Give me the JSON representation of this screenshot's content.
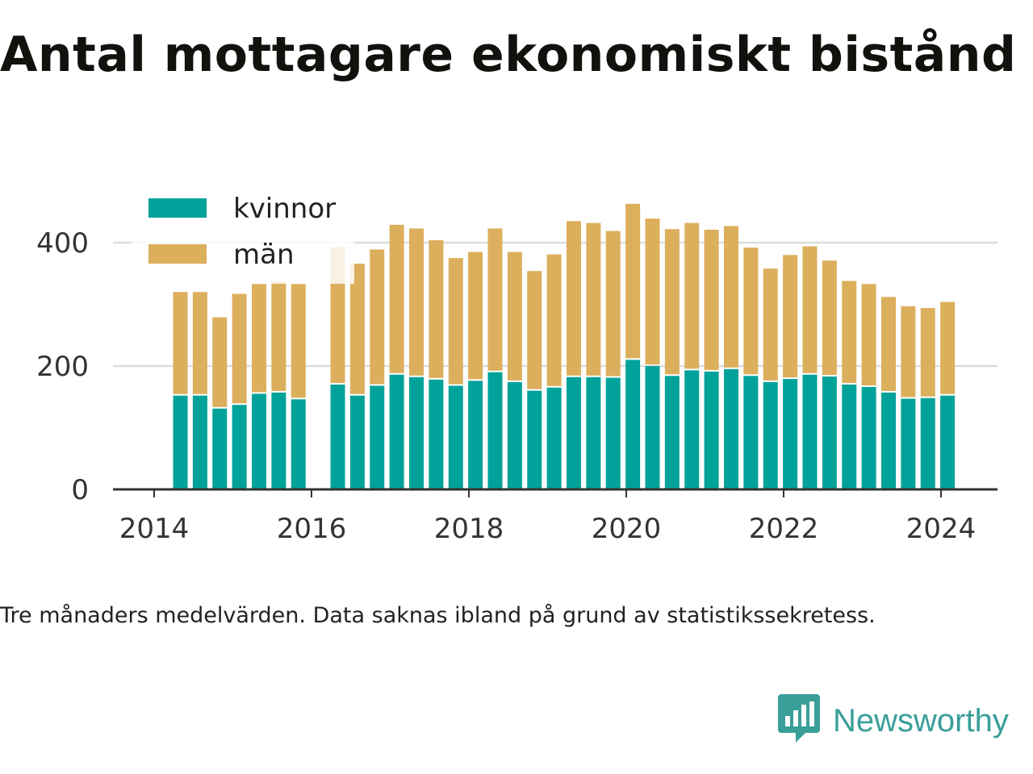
{
  "title": "Antal mottagare ekonomiskt bistånd",
  "caption": "Tre månaders medelvärden. Data saknas ibland på grund av statistikssekretess.",
  "brand": {
    "name": "Newsworthy",
    "color": "#3a9e99",
    "icon": "bar-chart-speech-bubble-logo-icon"
  },
  "colors": {
    "kvinnor": "#00a29a",
    "man": "#dcaf5d",
    "grid": "#dddddd",
    "axis": "#333333",
    "text": "#333333"
  },
  "chart_data": {
    "type": "bar",
    "stacked": true,
    "legend": {
      "placement": "top-left",
      "entries": [
        "kvinnor",
        "män"
      ]
    },
    "grid": true,
    "ylim": [
      0,
      480
    ],
    "yticks": [
      0,
      200,
      400
    ],
    "xticks": [
      "2014",
      "2016",
      "2018",
      "2020",
      "2022",
      "2024"
    ],
    "x": [
      "2014-05",
      "2014-08",
      "2014-11",
      "2015-02",
      "2015-05",
      "2015-08",
      "2015-11",
      "2016-02",
      "2016-05",
      "2016-08",
      "2016-11",
      "2017-02",
      "2017-05",
      "2017-08",
      "2017-11",
      "2018-02",
      "2018-05",
      "2018-08",
      "2018-11",
      "2019-02",
      "2019-05",
      "2019-08",
      "2019-11",
      "2020-02",
      "2020-05",
      "2020-08",
      "2020-11",
      "2021-02",
      "2021-05",
      "2021-08",
      "2021-11",
      "2022-02",
      "2022-05",
      "2022-08",
      "2022-11",
      "2023-02",
      "2023-05",
      "2023-08",
      "2023-11",
      "2024-02"
    ],
    "series": [
      {
        "name": "kvinnor",
        "values": [
          152,
          152,
          131,
          137,
          155,
          157,
          146,
          null,
          170,
          152,
          168,
          186,
          182,
          178,
          168,
          176,
          190,
          174,
          160,
          165,
          182,
          182,
          181,
          210,
          200,
          184,
          193,
          191,
          195,
          184,
          174,
          179,
          186,
          183,
          170,
          166,
          157,
          147,
          148,
          152
        ]
      },
      {
        "name": "män",
        "values": [
          168,
          168,
          148,
          180,
          178,
          180,
          187,
          null,
          223,
          214,
          221,
          243,
          241,
          226,
          207,
          209,
          233,
          211,
          194,
          216,
          253,
          250,
          238,
          253,
          239,
          238,
          239,
          230,
          232,
          208,
          184,
          201,
          208,
          188,
          168,
          167,
          155,
          150,
          146,
          152
        ]
      }
    ]
  }
}
